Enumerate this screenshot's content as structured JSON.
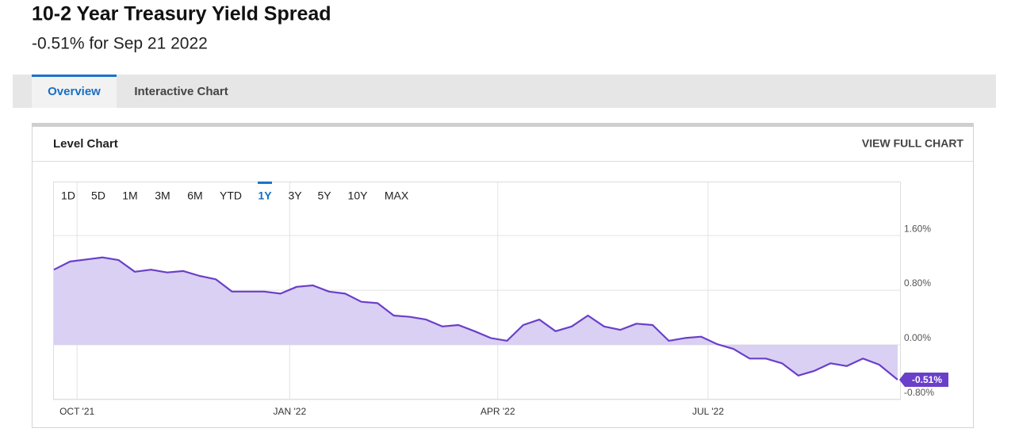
{
  "header": {
    "title": "10-2 Year Treasury Yield Spread",
    "subtitle": "-0.51% for Sep 21 2022"
  },
  "tabs": {
    "items": [
      "Overview",
      "Interactive Chart"
    ],
    "active": 0
  },
  "card": {
    "title": "Level Chart",
    "action": "VIEW FULL CHART"
  },
  "ranges": {
    "items": [
      "1D",
      "5D",
      "1M",
      "3M",
      "6M",
      "YTD",
      "1Y",
      "3Y",
      "5Y",
      "10Y",
      "MAX"
    ],
    "active": 6
  },
  "chart_data": {
    "type": "area",
    "x": [
      "2021-09-21",
      "2021-09-28",
      "2021-10-05",
      "2021-10-12",
      "2021-10-19",
      "2021-10-26",
      "2021-11-02",
      "2021-11-09",
      "2021-11-16",
      "2021-11-23",
      "2021-11-30",
      "2021-12-07",
      "2021-12-14",
      "2021-12-21",
      "2021-12-28",
      "2022-01-04",
      "2022-01-11",
      "2022-01-18",
      "2022-01-25",
      "2022-02-01",
      "2022-02-08",
      "2022-02-15",
      "2022-02-22",
      "2022-03-01",
      "2022-03-08",
      "2022-03-15",
      "2022-03-22",
      "2022-03-29",
      "2022-04-05",
      "2022-04-12",
      "2022-04-19",
      "2022-04-26",
      "2022-05-03",
      "2022-05-10",
      "2022-05-17",
      "2022-05-24",
      "2022-05-31",
      "2022-06-07",
      "2022-06-14",
      "2022-06-21",
      "2022-06-28",
      "2022-07-05",
      "2022-07-12",
      "2022-07-19",
      "2022-07-26",
      "2022-08-02",
      "2022-08-09",
      "2022-08-16",
      "2022-08-23",
      "2022-08-30",
      "2022-09-06",
      "2022-09-13",
      "2022-09-21"
    ],
    "values": [
      1.1,
      1.22,
      1.25,
      1.28,
      1.24,
      1.07,
      1.1,
      1.06,
      1.08,
      1.01,
      0.96,
      0.78,
      0.78,
      0.78,
      0.75,
      0.85,
      0.87,
      0.78,
      0.75,
      0.63,
      0.61,
      0.43,
      0.41,
      0.37,
      0.27,
      0.29,
      0.2,
      0.1,
      0.06,
      0.29,
      0.37,
      0.2,
      0.27,
      0.43,
      0.27,
      0.22,
      0.31,
      0.29,
      0.06,
      0.1,
      0.12,
      0.01,
      -0.06,
      -0.2,
      -0.2,
      -0.27,
      -0.45,
      -0.38,
      -0.27,
      -0.31,
      -0.2,
      -0.29,
      -0.51
    ],
    "value_labels": [
      null,
      null,
      null,
      null,
      null,
      null,
      null,
      null,
      null,
      null,
      null,
      null,
      null,
      null,
      null,
      null,
      null,
      null,
      null,
      null,
      null,
      null,
      null,
      null,
      null,
      null,
      null,
      null,
      null,
      null,
      null,
      null,
      null,
      null,
      null,
      null,
      null,
      null,
      null,
      null,
      null,
      null,
      null,
      null,
      null,
      null,
      null,
      null,
      null,
      null,
      null,
      null,
      "-0.51%"
    ],
    "color": "#6a3fca",
    "fill_color": "#d8cdf2",
    "xlim": [
      "2021-09-21",
      "2022-09-21"
    ],
    "xticks": [
      {
        "value": "2021-10-01",
        "label": "OCT '21"
      },
      {
        "value": "2022-01-01",
        "label": "JAN '22"
      },
      {
        "value": "2022-04-01",
        "label": "APR '22"
      },
      {
        "value": "2022-07-01",
        "label": "JUL '22"
      }
    ],
    "ylim": [
      -0.8,
      2.39
    ],
    "yticks": [
      {
        "value": -0.8,
        "label": "-0.80%"
      },
      {
        "value": 0,
        "label": "0.00%"
      },
      {
        "value": 0.8,
        "label": "0.80%"
      },
      {
        "value": 1.6,
        "label": "1.60%"
      }
    ],
    "grid": true
  }
}
